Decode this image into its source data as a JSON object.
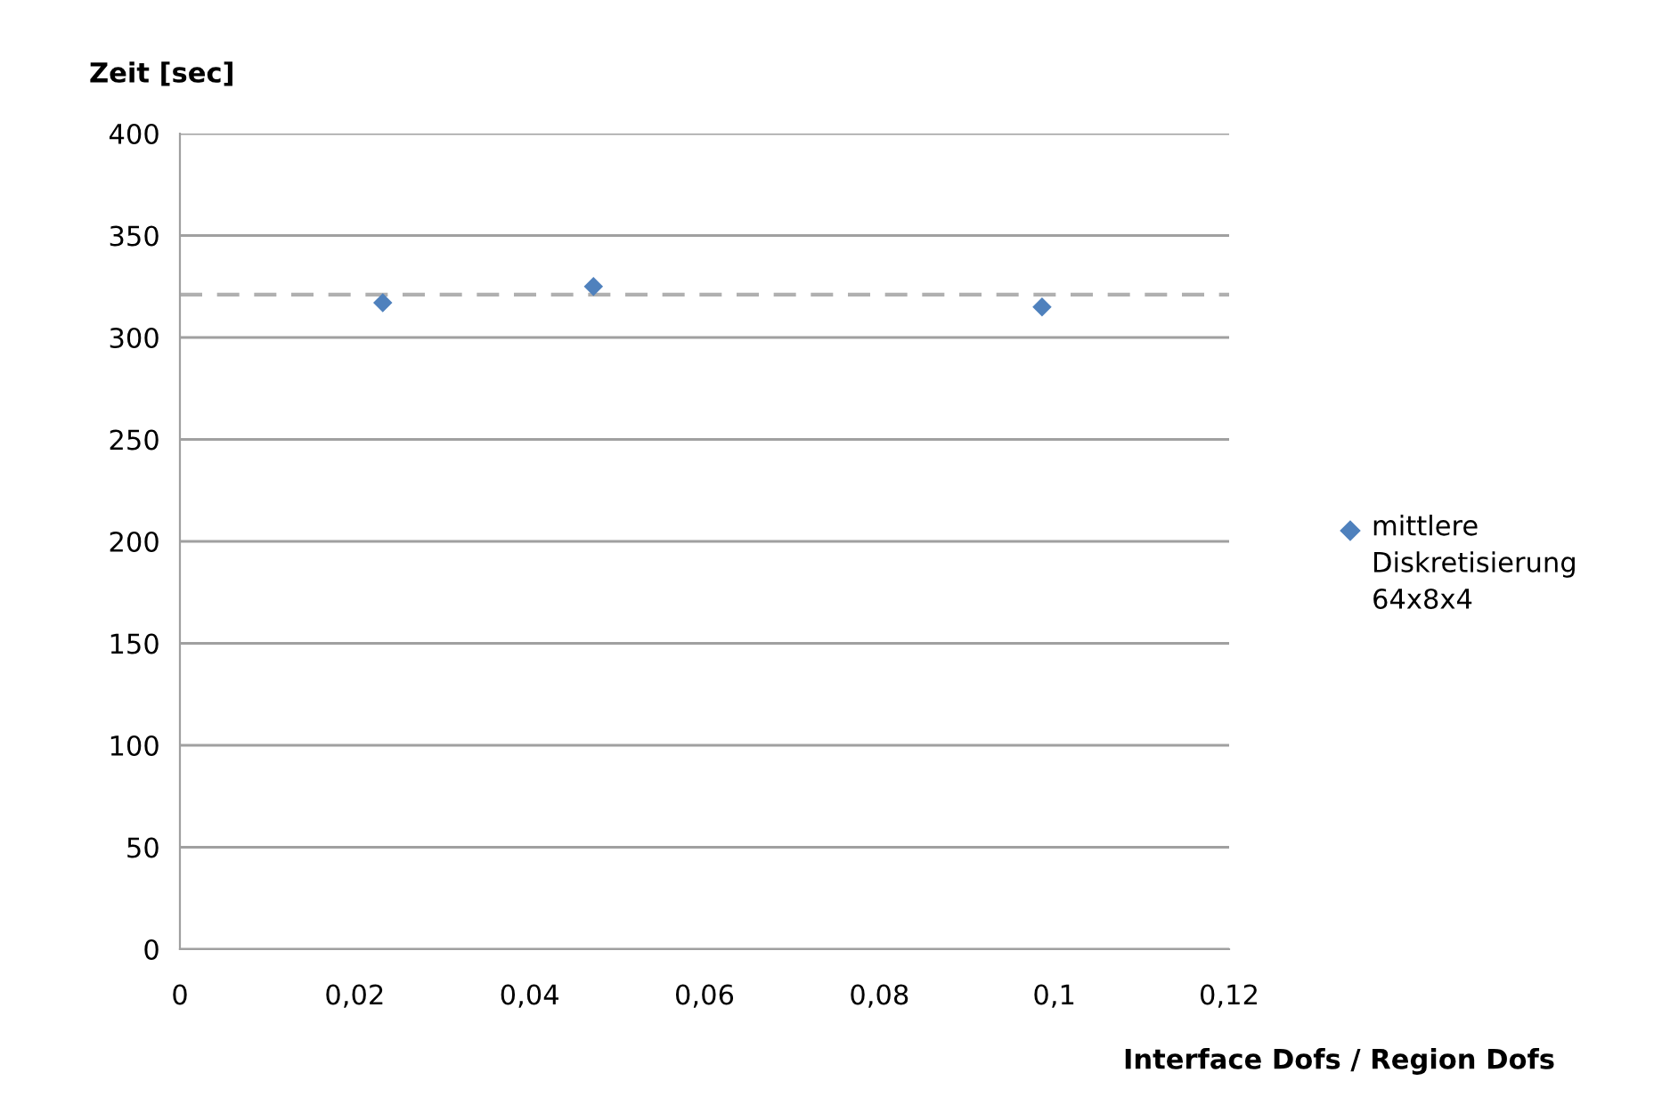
{
  "chart_data": {
    "type": "scatter",
    "ylabel": "Zeit [sec]",
    "xlabel": "Interface Dofs / Region Dofs",
    "series": [
      {
        "name": "mittlere Diskretisierung 64x8x4",
        "color": "#4f81bd",
        "x": [
          0.0232,
          0.0473,
          0.0986
        ],
        "values": [
          317,
          325,
          315
        ]
      }
    ],
    "xlim": [
      0,
      0.12
    ],
    "xticks": [
      {
        "value": 0,
        "label": "0"
      },
      {
        "value": 0.02,
        "label": "0,02"
      },
      {
        "value": 0.04,
        "label": "0,04"
      },
      {
        "value": 0.06,
        "label": "0,06"
      },
      {
        "value": 0.08,
        "label": "0,08"
      },
      {
        "value": 0.1,
        "label": "0,1"
      },
      {
        "value": 0.12,
        "label": "0,12"
      }
    ],
    "ylim": [
      0,
      400
    ],
    "yticks": [
      0,
      50,
      100,
      150,
      200,
      250,
      300,
      350,
      400
    ],
    "ref_lines": [
      {
        "axis": "y",
        "value": 321,
        "color": "#b0b0b0",
        "line_style": "dashed"
      }
    ],
    "grid": "y",
    "legend": "right",
    "marker": "diamond"
  }
}
